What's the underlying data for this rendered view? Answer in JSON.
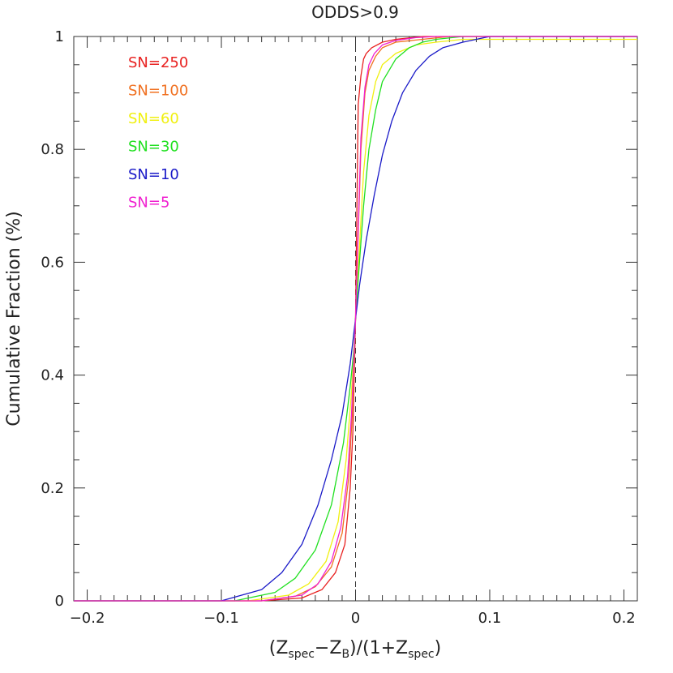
{
  "chart_data": {
    "type": "line",
    "title": "ODDS>0.9",
    "xlabel": "(Z_spec − Z_B)/(1+Z_spec)",
    "xlabel_parts": {
      "open": "(Z",
      "sub1": "spec",
      "mid1": "−Z",
      "sub2": "B",
      "mid2": ")/(1+Z",
      "sub3": "spec",
      "close": ")"
    },
    "ylabel": "Cumulative Fraction (%)",
    "xlim": [
      -0.21,
      0.21
    ],
    "ylim": [
      0,
      1
    ],
    "xticks": [
      -0.2,
      -0.1,
      0,
      0.1,
      0.2
    ],
    "xtick_labels": [
      "−0.2",
      "−0.1",
      "0",
      "0.1",
      "0.2"
    ],
    "yticks": [
      0,
      0.2,
      0.4,
      0.6,
      0.8,
      1
    ],
    "ytick_labels": [
      "0",
      "0.2",
      "0.4",
      "0.6",
      "0.8",
      "1"
    ],
    "grid": false,
    "legend_placement": "top-left",
    "reference_line": {
      "x": 0,
      "style": "dashed"
    },
    "series": [
      {
        "name": "SN=250",
        "color": "#e8201f",
        "x": [
          -0.21,
          -0.07,
          -0.04,
          -0.025,
          -0.015,
          -0.008,
          -0.004,
          -0.002,
          0,
          0.001,
          0.002,
          0.004,
          0.006,
          0.008,
          0.012,
          0.02,
          0.03,
          0.05,
          0.21
        ],
        "y": [
          0,
          0,
          0.005,
          0.02,
          0.05,
          0.1,
          0.2,
          0.3,
          0.5,
          0.7,
          0.88,
          0.93,
          0.96,
          0.97,
          0.98,
          0.99,
          0.995,
          1,
          1
        ]
      },
      {
        "name": "SN=100",
        "color": "#f07020",
        "x": [
          -0.21,
          -0.07,
          -0.045,
          -0.03,
          -0.018,
          -0.01,
          -0.005,
          -0.002,
          0,
          0.002,
          0.004,
          0.007,
          0.01,
          0.015,
          0.02,
          0.03,
          0.05,
          0.07,
          0.21
        ],
        "y": [
          0,
          0,
          0.008,
          0.025,
          0.06,
          0.12,
          0.22,
          0.35,
          0.5,
          0.65,
          0.8,
          0.9,
          0.94,
          0.965,
          0.98,
          0.99,
          0.995,
          1,
          1
        ]
      },
      {
        "name": "SN=60",
        "color": "#f0f010",
        "x": [
          -0.21,
          -0.08,
          -0.05,
          -0.035,
          -0.022,
          -0.013,
          -0.007,
          -0.003,
          0,
          0.003,
          0.006,
          0.01,
          0.015,
          0.02,
          0.03,
          0.045,
          0.06,
          0.08,
          0.21
        ],
        "y": [
          0,
          0,
          0.01,
          0.03,
          0.07,
          0.14,
          0.25,
          0.37,
          0.5,
          0.63,
          0.76,
          0.86,
          0.92,
          0.95,
          0.97,
          0.985,
          0.99,
          0.995,
          0.995
        ]
      },
      {
        "name": "SN=30",
        "color": "#20e020",
        "x": [
          -0.21,
          -0.09,
          -0.06,
          -0.045,
          -0.03,
          -0.018,
          -0.009,
          -0.004,
          -0.001,
          0,
          0.002,
          0.006,
          0.01,
          0.015,
          0.02,
          0.03,
          0.04,
          0.05,
          0.06,
          0.08,
          0.21
        ],
        "y": [
          0,
          0,
          0.015,
          0.04,
          0.09,
          0.17,
          0.28,
          0.38,
          0.45,
          0.5,
          0.57,
          0.7,
          0.8,
          0.87,
          0.92,
          0.96,
          0.98,
          0.99,
          0.995,
          1,
          1
        ]
      },
      {
        "name": "SN=10",
        "color": "#1a1ac8",
        "x": [
          -0.21,
          -0.1,
          -0.07,
          -0.055,
          -0.04,
          -0.028,
          -0.018,
          -0.01,
          -0.004,
          0,
          0.003,
          0.008,
          0.014,
          0.02,
          0.027,
          0.035,
          0.045,
          0.055,
          0.065,
          0.08,
          0.1,
          0.21
        ],
        "y": [
          0,
          0,
          0.02,
          0.05,
          0.1,
          0.17,
          0.25,
          0.33,
          0.42,
          0.5,
          0.56,
          0.64,
          0.72,
          0.79,
          0.85,
          0.9,
          0.94,
          0.965,
          0.98,
          0.99,
          1,
          1
        ]
      },
      {
        "name": "SN=5",
        "color": "#f020d0",
        "x": [
          -0.21,
          -0.07,
          -0.04,
          -0.028,
          -0.018,
          -0.011,
          -0.006,
          -0.003,
          0,
          0.002,
          0.004,
          0.007,
          0.01,
          0.014,
          0.02,
          0.03,
          0.045,
          0.06,
          0.21
        ],
        "y": [
          0,
          0,
          0.01,
          0.03,
          0.07,
          0.13,
          0.22,
          0.33,
          0.5,
          0.66,
          0.82,
          0.91,
          0.95,
          0.97,
          0.985,
          0.993,
          0.998,
          1,
          1
        ]
      }
    ]
  }
}
